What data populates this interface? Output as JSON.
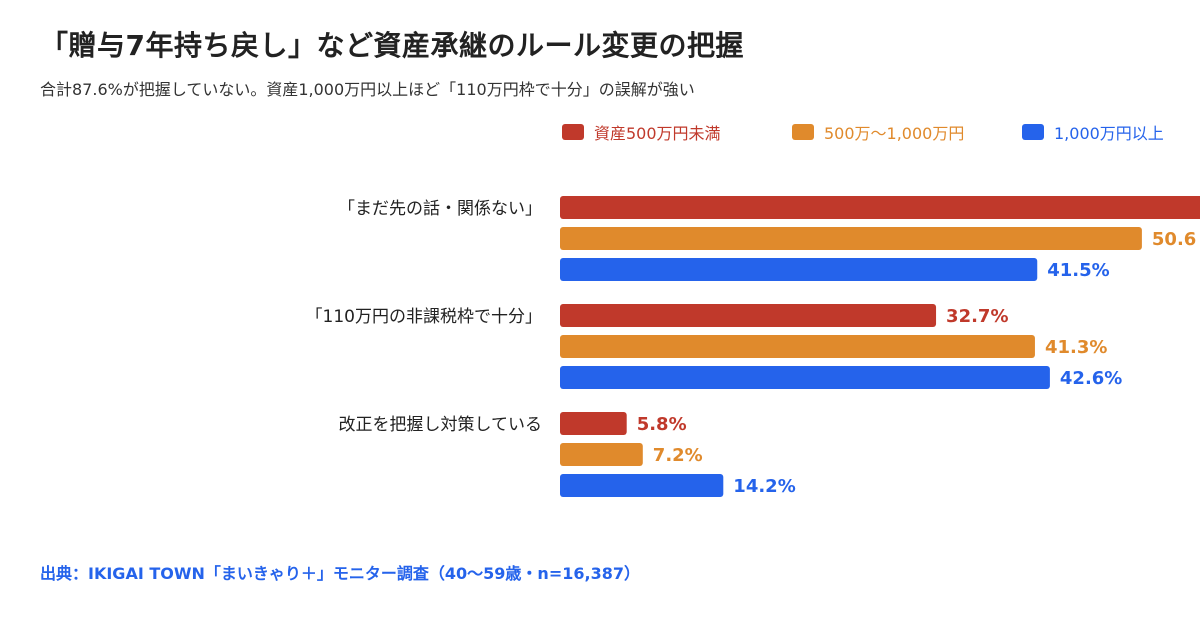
{
  "title": "「贈与7年持ち戻し」など資産承継のルール変更の把握",
  "subtitle": "合計87.6%が把握していない。資産1,000万円以上ほど「110万円枠で十分」の誤解が強い",
  "source": "出典：IKIGAI TOWN「まいきゃり＋」モニター調査（40〜59歳・n=16,387）",
  "chart_data": {
    "type": "bar",
    "orientation": "horizontal",
    "categories": [
      "「まだ先の話・関係ない」",
      "「110万円の非課税枠で十分」",
      "改正を把握し対策している"
    ],
    "series": [
      {
        "name": "資産500万円未満",
        "color": "#c0392b",
        "values": [
          null,
          32.7,
          5.8
        ],
        "labels": [
          "",
          "32.7%",
          "5.8%"
        ]
      },
      {
        "name": "500万〜1,000万円",
        "color": "#e08a2c",
        "values": [
          50.6,
          41.3,
          7.2
        ],
        "labels": [
          "50.6",
          "41.3%",
          "7.2%"
        ]
      },
      {
        "name": "1,000万円以上",
        "color": "#2563eb",
        "values": [
          41.5,
          42.6,
          14.2
        ],
        "labels": [
          "41.5%",
          "42.6%",
          "14.2%"
        ]
      }
    ],
    "legend_position": "top-right",
    "grid": false
  }
}
